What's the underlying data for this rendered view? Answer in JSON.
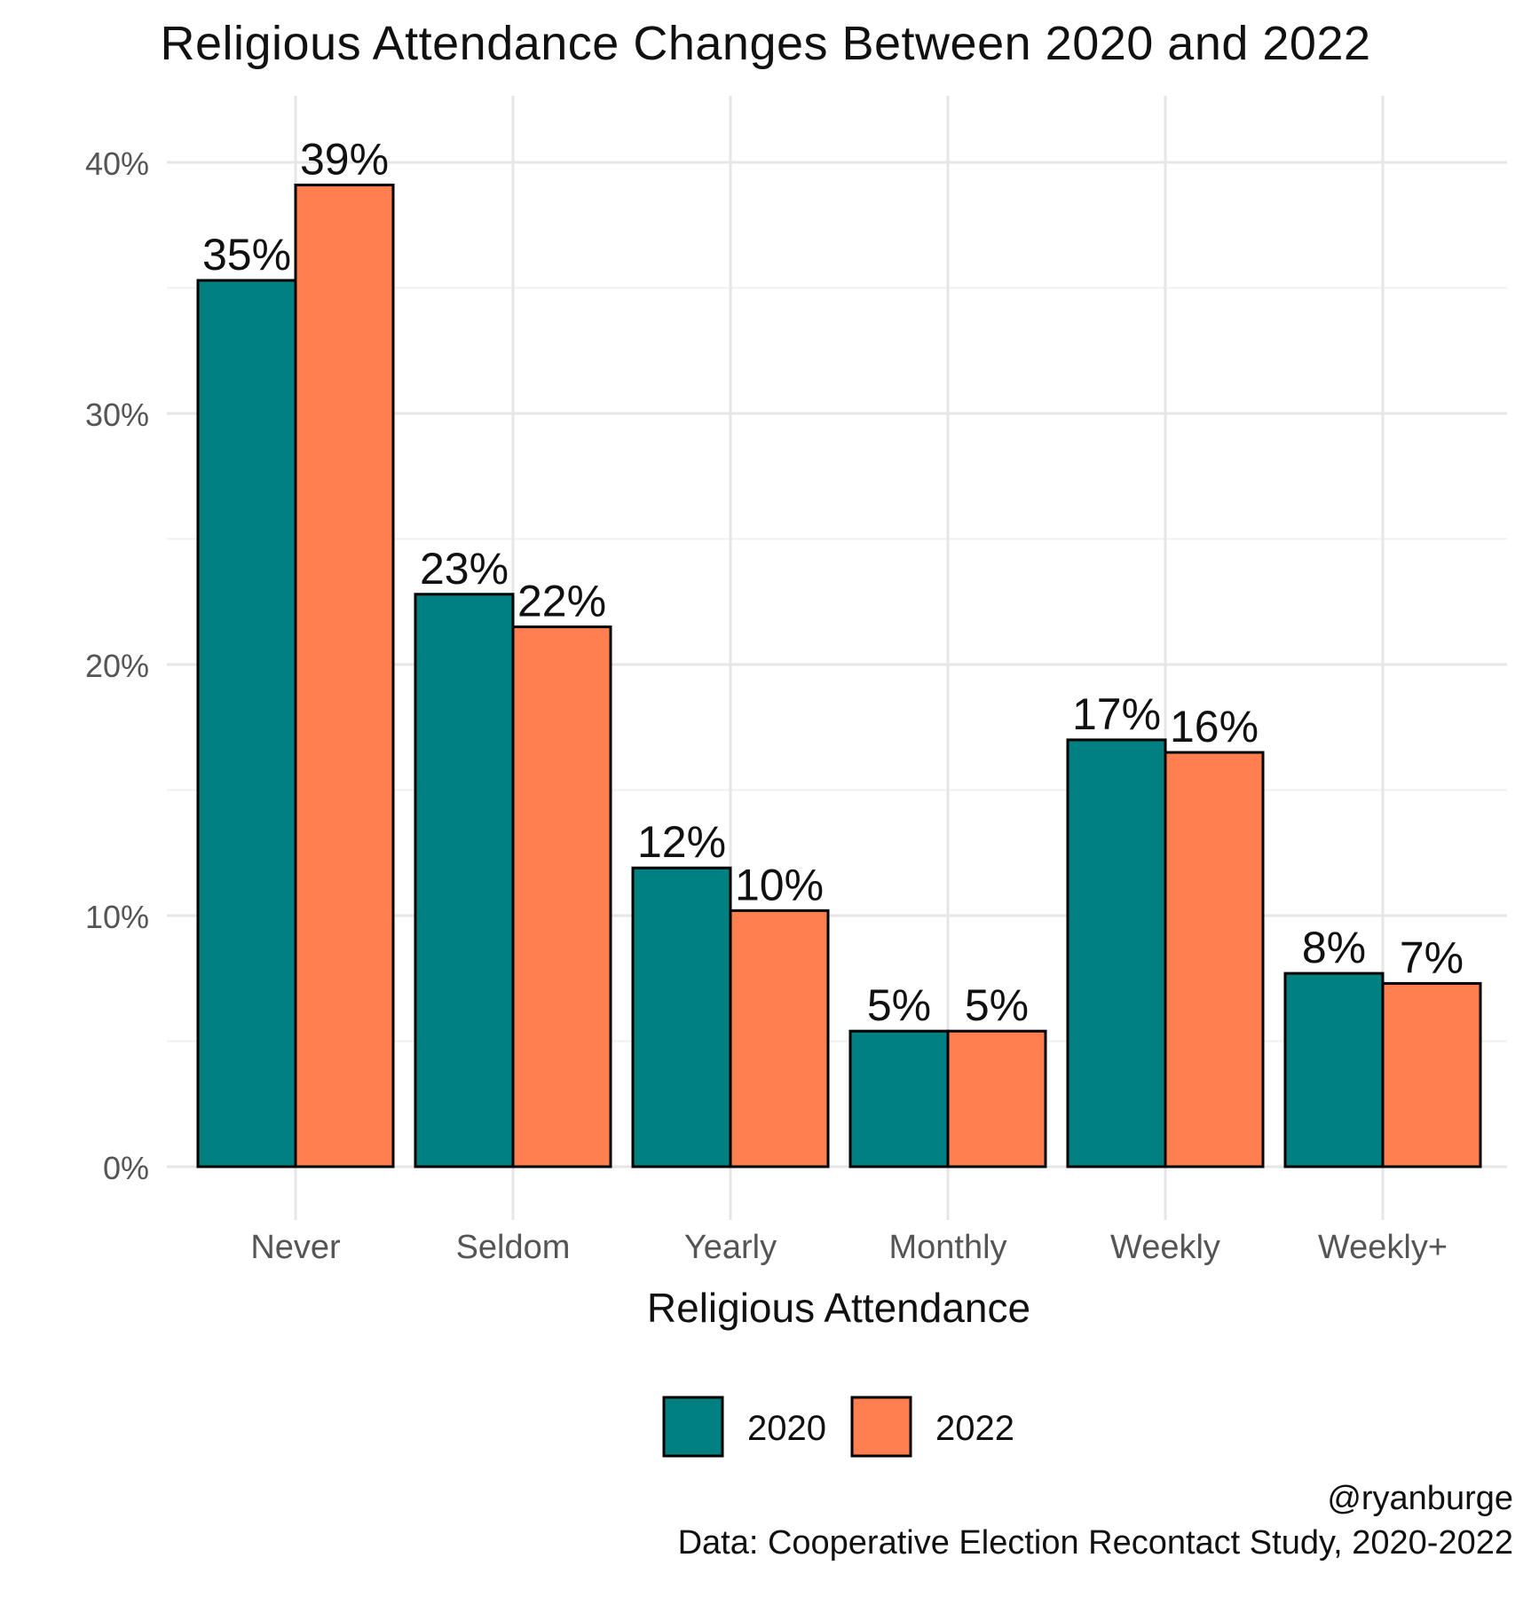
{
  "chart_data": {
    "type": "bar",
    "title": "Religious Attendance Changes Between 2020 and 2022",
    "xlabel": "Religious Attendance",
    "ylabel": "",
    "ylim": [
      0,
      0.42
    ],
    "categories": [
      "Never",
      "Seldom",
      "Yearly",
      "Monthly",
      "Weekly",
      "Weekly+"
    ],
    "series": [
      {
        "name": "2020",
        "color": "#008080",
        "values": [
          0.353,
          0.228,
          0.119,
          0.054,
          0.17,
          0.077
        ],
        "labels": [
          "35%",
          "23%",
          "12%",
          "5%",
          "17%",
          "8%"
        ]
      },
      {
        "name": "2022",
        "color": "#FF7F50",
        "values": [
          0.391,
          0.215,
          0.102,
          0.054,
          0.165,
          0.073
        ],
        "labels": [
          "39%",
          "22%",
          "10%",
          "5%",
          "16%",
          "7%"
        ]
      }
    ],
    "y_ticks": [
      {
        "value": 0.0,
        "label": "0%"
      },
      {
        "value": 0.1,
        "label": "10%"
      },
      {
        "value": 0.2,
        "label": "20%"
      },
      {
        "value": 0.3,
        "label": "30%"
      },
      {
        "value": 0.4,
        "label": "40%"
      }
    ],
    "grid": true,
    "legend_position": "bottom"
  },
  "caption": {
    "handle": "@ryanburge",
    "source": "Data: Cooperative Election Recontact Study, 2020-2022"
  }
}
